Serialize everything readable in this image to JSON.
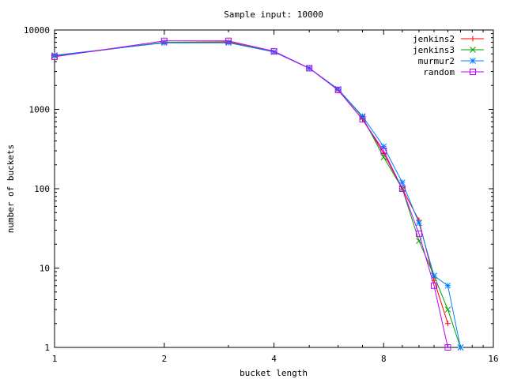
{
  "chart_data": {
    "type": "line",
    "title": "Sample input: 10000",
    "xlabel": "bucket length",
    "ylabel": "number of buckets",
    "x_scale": "log2",
    "y_scale": "log10",
    "xlim": [
      1,
      16
    ],
    "ylim": [
      1,
      10000
    ],
    "x_ticks": [
      "1",
      "2",
      "4",
      "8",
      "16"
    ],
    "y_ticks": [
      "1",
      "10",
      "100",
      "1000",
      "10000"
    ],
    "grid": false,
    "legend_position": "top-right",
    "series": [
      {
        "name": "jenkins2",
        "color": "#ff0000",
        "marker": "plus",
        "x": [
          1,
          2,
          3,
          4,
          5,
          6,
          7,
          8,
          9,
          10,
          11,
          12
        ],
        "y": [
          4700,
          7000,
          7100,
          5300,
          3300,
          1750,
          750,
          280,
          100,
          40,
          7,
          2
        ]
      },
      {
        "name": "jenkins3",
        "color": "#00a000",
        "marker": "cross",
        "x": [
          1,
          2,
          3,
          4,
          5,
          6,
          7,
          8,
          9,
          10,
          11,
          12,
          13
        ],
        "y": [
          4700,
          7000,
          7000,
          5300,
          3300,
          1800,
          800,
          250,
          100,
          22,
          8,
          3,
          1
        ]
      },
      {
        "name": "murmur2",
        "color": "#0080ff",
        "marker": "star",
        "x": [
          1,
          2,
          3,
          4,
          5,
          6,
          7,
          8,
          9,
          10,
          11,
          12,
          13
        ],
        "y": [
          4800,
          6900,
          6900,
          5300,
          3300,
          1800,
          820,
          340,
          120,
          37,
          8,
          6,
          1
        ]
      },
      {
        "name": "random",
        "color": "#c000ff",
        "marker": "square",
        "x": [
          1,
          2,
          3,
          4,
          5,
          6,
          7,
          8,
          9,
          10,
          11,
          12
        ],
        "y": [
          4600,
          7300,
          7300,
          5400,
          3300,
          1750,
          750,
          300,
          100,
          27,
          6,
          1
        ]
      }
    ]
  }
}
